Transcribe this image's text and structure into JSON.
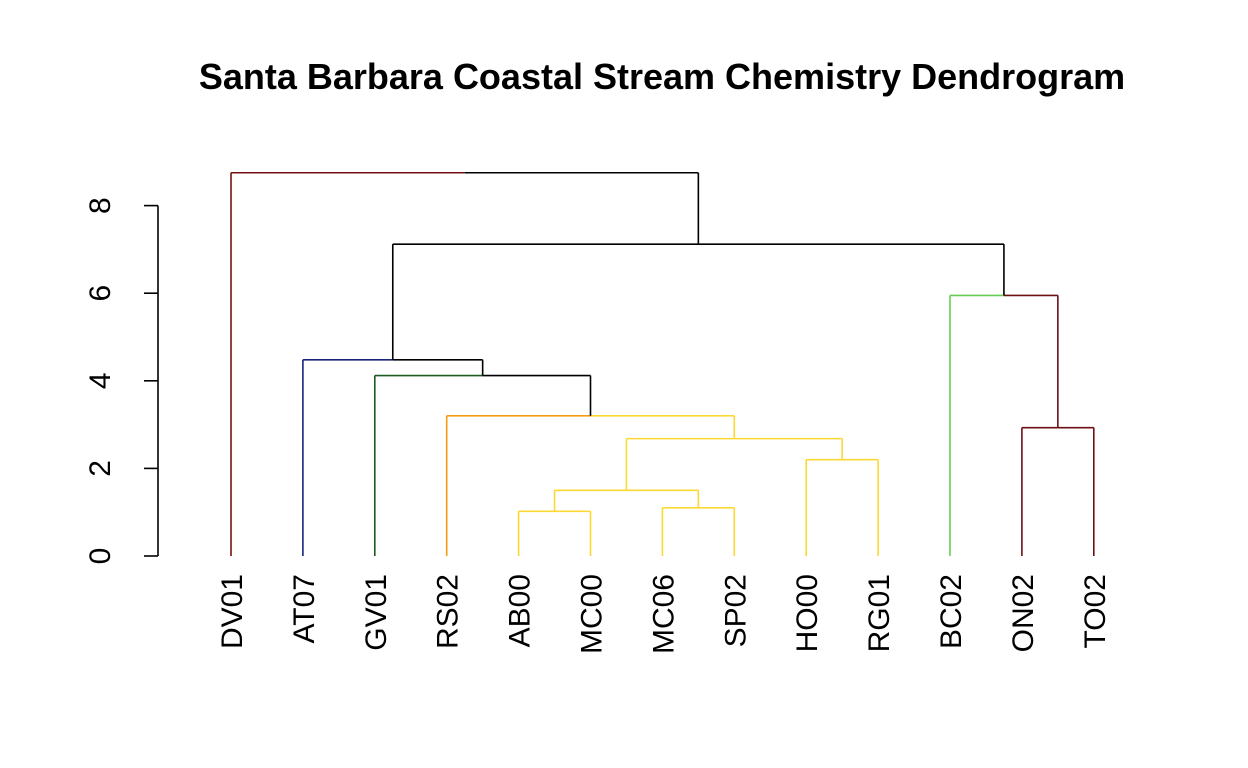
{
  "chart_data": {
    "type": "dendrogram",
    "title": "Santa Barbara Coastal Stream Chemistry Dendrogram",
    "xlabel": "",
    "ylabel": "",
    "ylim": [
      0,
      8.8
    ],
    "y_ticks": [
      0,
      2,
      4,
      6,
      8
    ],
    "y_tick_labels": [
      "0",
      "2",
      "4",
      "6",
      "8"
    ],
    "leaves": [
      "DV01",
      "AT07",
      "GV01",
      "RS02",
      "AB00",
      "MC00",
      "MC06",
      "SP02",
      "HO00",
      "RG01",
      "BC02",
      "ON02",
      "TO02"
    ],
    "colors": {
      "dv_cluster": "#7a1010",
      "at_cluster": "#1a237e",
      "gv_cluster": "#1b5e20",
      "rs_cluster": "#f39c12",
      "yellow_cluster": "#fdd835",
      "bc_cluster": "#66cc55",
      "ot_cluster": "#6d0f14",
      "trunk": "#000000"
    },
    "merges": [
      {
        "id": "m1",
        "left": "AB00",
        "right": "MC00",
        "height": 1.02,
        "color": "yellow_cluster"
      },
      {
        "id": "m2",
        "left": "MC06",
        "right": "SP02",
        "height": 1.1,
        "color": "yellow_cluster"
      },
      {
        "id": "m3",
        "left": "m1",
        "right": "m2",
        "height": 1.5,
        "color": "yellow_cluster"
      },
      {
        "id": "m4",
        "left": "HO00",
        "right": "RG01",
        "height": 2.2,
        "color": "yellow_cluster"
      },
      {
        "id": "m5",
        "left": "m3",
        "right": "m4",
        "height": 2.68,
        "color": "yellow_cluster"
      },
      {
        "id": "m6",
        "left": "RS02",
        "right": "m5",
        "height": 3.2,
        "color": "yellow_cluster",
        "left_color": "rs_cluster"
      },
      {
        "id": "m7",
        "left": "GV01",
        "right": "m6",
        "height": 4.12,
        "color": "trunk",
        "left_color": "gv_cluster"
      },
      {
        "id": "m8",
        "left": "AT07",
        "right": "m7",
        "height": 4.48,
        "color": "trunk",
        "left_color": "at_cluster"
      },
      {
        "id": "m9",
        "left": "ON02",
        "right": "TO02",
        "height": 2.93,
        "color": "ot_cluster"
      },
      {
        "id": "m10",
        "left": "BC02",
        "right": "m9",
        "height": 5.95,
        "color": "ot_cluster",
        "left_color": "bc_cluster"
      },
      {
        "id": "m11",
        "left": "m8",
        "right": "m10",
        "height": 7.12,
        "color": "trunk"
      },
      {
        "id": "m12",
        "left": "DV01",
        "right": "m11",
        "height": 8.75,
        "color": "trunk",
        "left_color": "dv_cluster"
      }
    ]
  }
}
